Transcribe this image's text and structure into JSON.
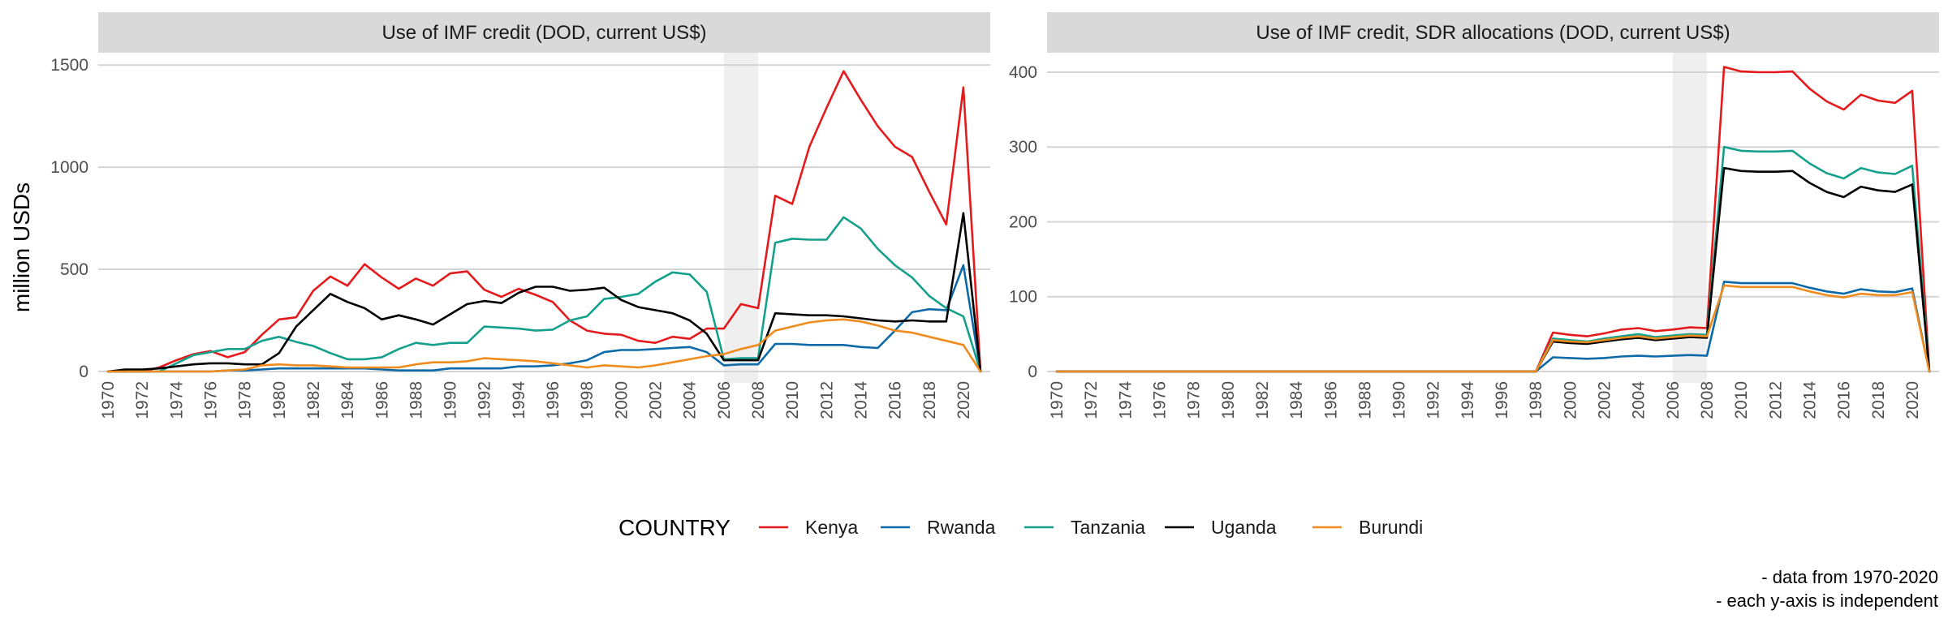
{
  "y_axis_label": "million USDs",
  "legend": {
    "title": "COUNTRY",
    "items": [
      {
        "name": "Kenya",
        "color": "#E41A1C"
      },
      {
        "name": "Rwanda",
        "color": "#0D6AA8"
      },
      {
        "name": "Tanzania",
        "color": "#14A08C"
      },
      {
        "name": "Uganda",
        "color": "#000000"
      },
      {
        "name": "Burundi",
        "color": "#F08C1E"
      }
    ]
  },
  "caption": {
    "line1": "- data from 1970-2020",
    "line2": "- each y-axis is independent"
  },
  "chart_data": [
    {
      "type": "line",
      "title": "Use of IMF credit (DOD, current US$)",
      "ylabel": "million USDs",
      "xlim": [
        1970,
        2021
      ],
      "ylim": [
        0,
        1560
      ],
      "yticks": [
        0,
        500,
        1000,
        1500
      ],
      "xticks": [
        1970,
        1972,
        1974,
        1976,
        1978,
        1980,
        1982,
        1984,
        1986,
        1988,
        1990,
        1992,
        1994,
        1996,
        1998,
        2000,
        2002,
        2004,
        2006,
        2008,
        2010,
        2012,
        2014,
        2016,
        2018,
        2020
      ],
      "highlight_band": [
        2006,
        2008
      ],
      "grid": "horizontal",
      "x": [
        1970,
        1971,
        1972,
        1973,
        1974,
        1975,
        1976,
        1977,
        1978,
        1979,
        1980,
        1981,
        1982,
        1983,
        1984,
        1985,
        1986,
        1987,
        1988,
        1989,
        1990,
        1991,
        1992,
        1993,
        1994,
        1995,
        1996,
        1997,
        1998,
        1999,
        2000,
        2001,
        2002,
        2003,
        2004,
        2005,
        2006,
        2007,
        2008,
        2009,
        2010,
        2011,
        2012,
        2013,
        2014,
        2015,
        2016,
        2017,
        2018,
        2019,
        2020,
        2021
      ],
      "series": [
        {
          "name": "Kenya",
          "values": [
            0,
            0,
            0,
            20,
            55,
            85,
            100,
            70,
            95,
            180,
            255,
            265,
            395,
            465,
            420,
            525,
            460,
            405,
            455,
            420,
            480,
            490,
            400,
            365,
            405,
            375,
            340,
            250,
            200,
            185,
            180,
            150,
            140,
            170,
            160,
            210,
            210,
            330,
            310,
            860,
            820,
            1100,
            1290,
            1470,
            1330,
            1200,
            1100,
            1050,
            880,
            720,
            1390,
            0
          ]
        },
        {
          "name": "Rwanda",
          "values": [
            0,
            0,
            0,
            0,
            0,
            0,
            0,
            5,
            5,
            10,
            15,
            15,
            15,
            15,
            15,
            15,
            10,
            5,
            5,
            5,
            15,
            15,
            15,
            15,
            25,
            25,
            30,
            40,
            55,
            95,
            105,
            105,
            110,
            115,
            120,
            95,
            30,
            35,
            35,
            135,
            135,
            130,
            130,
            130,
            120,
            115,
            200,
            290,
            305,
            300,
            520,
            0
          ]
        },
        {
          "name": "Tanzania",
          "values": [
            0,
            0,
            0,
            0,
            40,
            80,
            95,
            110,
            110,
            150,
            170,
            145,
            125,
            90,
            60,
            60,
            70,
            110,
            140,
            130,
            140,
            140,
            220,
            215,
            210,
            200,
            205,
            250,
            270,
            355,
            365,
            380,
            440,
            485,
            475,
            390,
            60,
            65,
            65,
            630,
            650,
            645,
            645,
            755,
            700,
            600,
            520,
            460,
            370,
            310,
            270,
            0
          ]
        },
        {
          "name": "Uganda",
          "values": [
            0,
            10,
            10,
            15,
            25,
            35,
            40,
            40,
            35,
            35,
            90,
            220,
            300,
            380,
            340,
            310,
            255,
            275,
            255,
            230,
            280,
            330,
            345,
            335,
            385,
            415,
            415,
            395,
            400,
            410,
            350,
            315,
            300,
            285,
            250,
            185,
            55,
            55,
            55,
            285,
            280,
            275,
            275,
            270,
            260,
            250,
            245,
            250,
            245,
            245,
            775,
            0
          ]
        },
        {
          "name": "Burundi",
          "values": [
            0,
            0,
            0,
            0,
            0,
            0,
            0,
            5,
            10,
            30,
            35,
            30,
            30,
            25,
            20,
            20,
            20,
            20,
            35,
            45,
            45,
            50,
            65,
            60,
            55,
            50,
            40,
            30,
            20,
            30,
            25,
            20,
            30,
            45,
            60,
            75,
            85,
            110,
            130,
            200,
            220,
            240,
            250,
            255,
            245,
            225,
            200,
            190,
            170,
            150,
            130,
            0
          ]
        }
      ]
    },
    {
      "type": "line",
      "title": "Use of IMF credit, SDR allocations (DOD, current US$)",
      "ylabel": "",
      "xlim": [
        1970,
        2021
      ],
      "ylim": [
        0,
        426
      ],
      "yticks": [
        0,
        100,
        200,
        300,
        400
      ],
      "xticks": [
        1970,
        1972,
        1974,
        1976,
        1978,
        1980,
        1982,
        1984,
        1986,
        1988,
        1990,
        1992,
        1994,
        1996,
        1998,
        2000,
        2002,
        2004,
        2006,
        2008,
        2010,
        2012,
        2014,
        2016,
        2018,
        2020
      ],
      "highlight_band": [
        2006,
        2008
      ],
      "grid": "horizontal",
      "x": [
        1970,
        1971,
        1972,
        1973,
        1974,
        1975,
        1976,
        1977,
        1978,
        1979,
        1980,
        1981,
        1982,
        1983,
        1984,
        1985,
        1986,
        1987,
        1988,
        1989,
        1990,
        1991,
        1992,
        1993,
        1994,
        1995,
        1996,
        1997,
        1998,
        1999,
        2000,
        2001,
        2002,
        2003,
        2004,
        2005,
        2006,
        2007,
        2008,
        2009,
        2010,
        2011,
        2012,
        2013,
        2014,
        2015,
        2016,
        2017,
        2018,
        2019,
        2020,
        2021
      ],
      "series": [
        {
          "name": "Kenya",
          "values": [
            0,
            0,
            0,
            0,
            0,
            0,
            0,
            0,
            0,
            0,
            0,
            0,
            0,
            0,
            0,
            0,
            0,
            0,
            0,
            0,
            0,
            0,
            0,
            0,
            0,
            0,
            0,
            0,
            0,
            52,
            49,
            47,
            51,
            56,
            58,
            54,
            56,
            59,
            58,
            407,
            401,
            400,
            400,
            401,
            378,
            361,
            350,
            370,
            362,
            359,
            375,
            0
          ]
        },
        {
          "name": "Rwanda",
          "values": [
            0,
            0,
            0,
            0,
            0,
            0,
            0,
            0,
            0,
            0,
            0,
            0,
            0,
            0,
            0,
            0,
            0,
            0,
            0,
            0,
            0,
            0,
            0,
            0,
            0,
            0,
            0,
            0,
            0,
            19,
            18,
            17,
            18,
            20,
            21,
            20,
            21,
            22,
            21,
            120,
            118,
            118,
            118,
            118,
            112,
            107,
            104,
            110,
            107,
            106,
            111,
            0
          ]
        },
        {
          "name": "Tanzania",
          "values": [
            0,
            0,
            0,
            0,
            0,
            0,
            0,
            0,
            0,
            0,
            0,
            0,
            0,
            0,
            0,
            0,
            0,
            0,
            0,
            0,
            0,
            0,
            0,
            0,
            0,
            0,
            0,
            0,
            0,
            44,
            42,
            40,
            44,
            47,
            50,
            46,
            48,
            50,
            49,
            300,
            295,
            294,
            294,
            295,
            278,
            265,
            258,
            272,
            266,
            264,
            275,
            0
          ]
        },
        {
          "name": "Uganda",
          "values": [
            0,
            0,
            0,
            0,
            0,
            0,
            0,
            0,
            0,
            0,
            0,
            0,
            0,
            0,
            0,
            0,
            0,
            0,
            0,
            0,
            0,
            0,
            0,
            0,
            0,
            0,
            0,
            0,
            0,
            40,
            38,
            37,
            40,
            43,
            45,
            42,
            44,
            46,
            45,
            272,
            268,
            267,
            267,
            268,
            252,
            240,
            233,
            247,
            242,
            240,
            250,
            0
          ]
        },
        {
          "name": "Burundi",
          "values": [
            0,
            0,
            0,
            0,
            0,
            0,
            0,
            0,
            0,
            0,
            0,
            0,
            0,
            0,
            0,
            0,
            0,
            0,
            0,
            0,
            0,
            0,
            0,
            0,
            0,
            0,
            0,
            0,
            0,
            42,
            40,
            39,
            42,
            45,
            47,
            44,
            46,
            48,
            47,
            115,
            113,
            113,
            113,
            113,
            107,
            102,
            99,
            104,
            102,
            102,
            106,
            0
          ]
        }
      ]
    }
  ]
}
